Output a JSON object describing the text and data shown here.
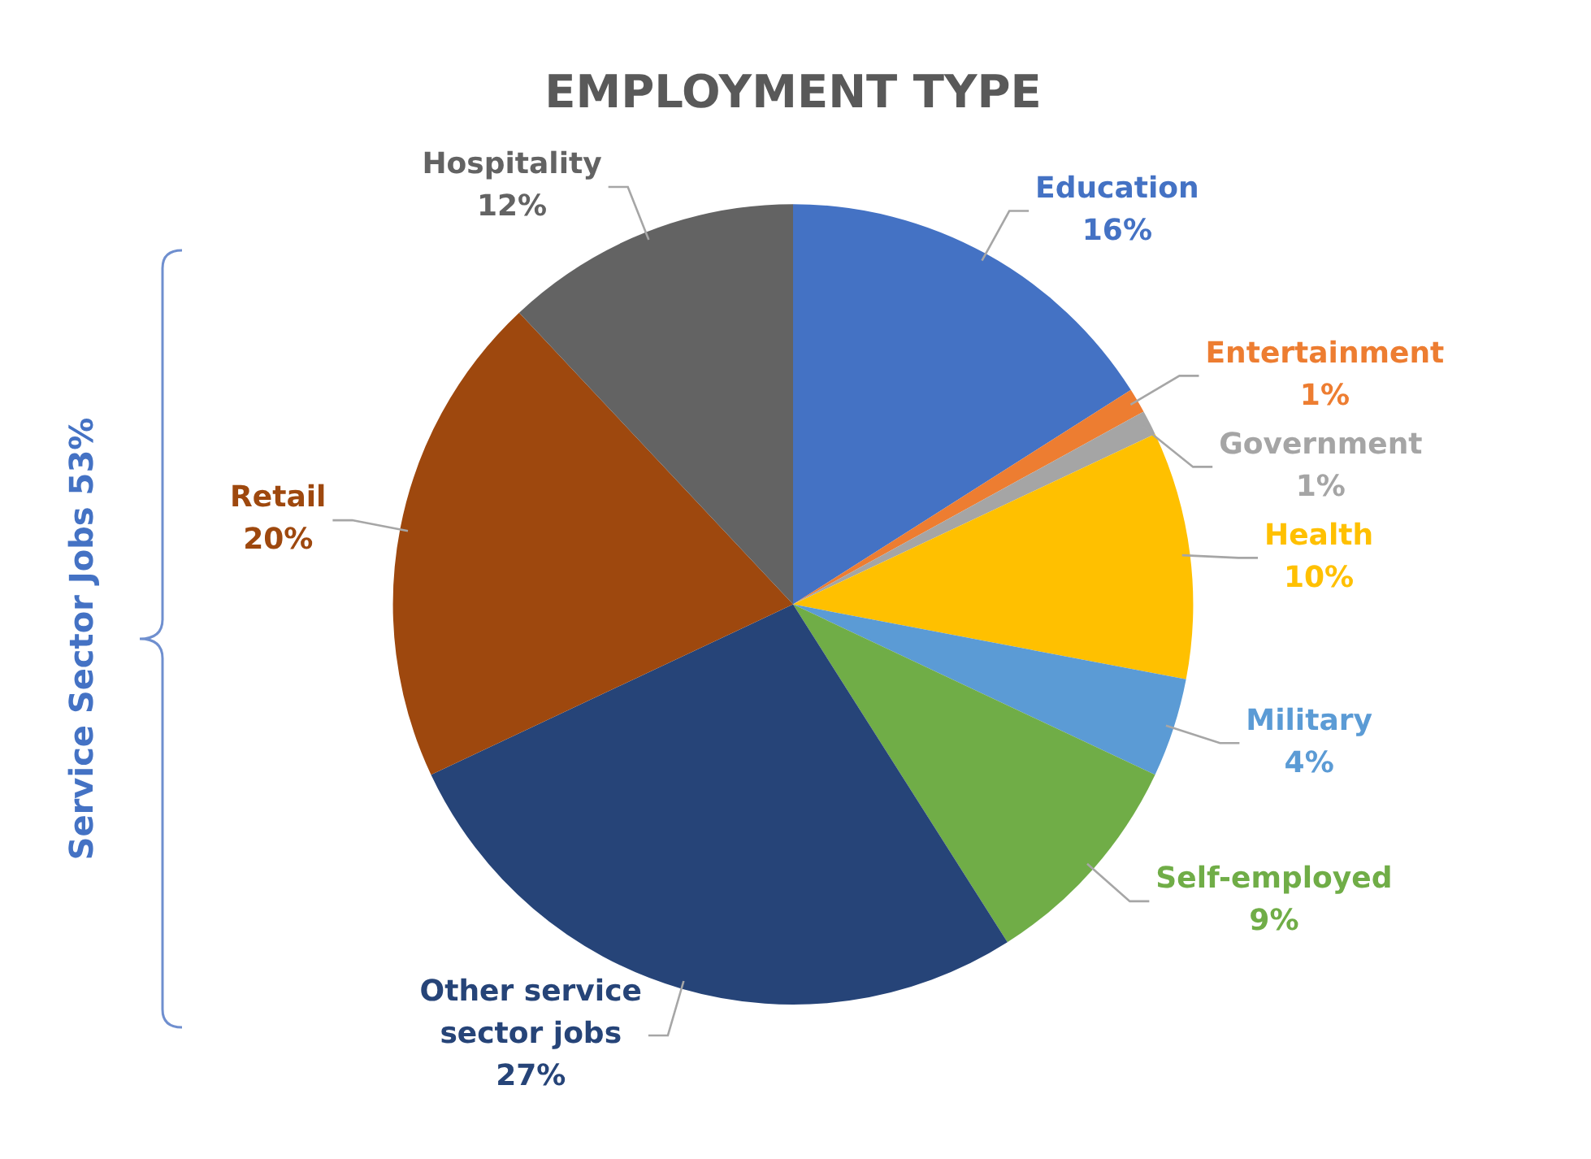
{
  "chart_data": {
    "type": "pie",
    "title": "EMPLOYMENT TYPE",
    "categories": [
      "Education",
      "Entertainment",
      "Government",
      "Health",
      "Military",
      "Self-employed",
      "Other service sector jobs",
      "Retail",
      "Hospitality"
    ],
    "values": [
      16,
      1,
      1,
      10,
      4,
      9,
      27,
      20,
      12
    ],
    "value_labels": [
      "16%",
      "1%",
      "1%",
      "10%",
      "4%",
      "9%",
      "27%",
      "20%",
      "12%"
    ],
    "colors": [
      "#4472c4",
      "#ed7d31",
      "#a5a5a5",
      "#ffc000",
      "#5b9bd5",
      "#70ad47",
      "#264478",
      "#9e480e",
      "#636363"
    ],
    "legend": false,
    "annotations": [
      "Service Sector Jobs 53%"
    ]
  }
}
